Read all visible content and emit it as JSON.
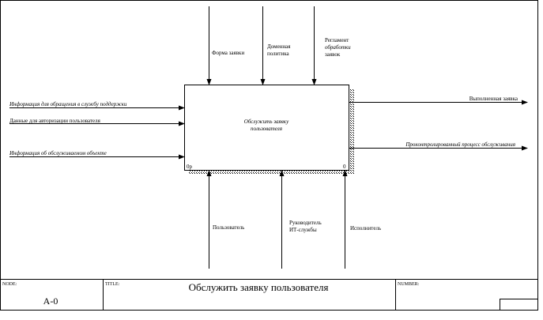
{
  "diagram": {
    "activity": {
      "label_lines": [
        "Обслужить заявку",
        "пользователя"
      ],
      "cost": "0р",
      "number": "0"
    },
    "inputs": [
      {
        "label": "Информация для обращения в службу поддержки"
      },
      {
        "label": "Данные для авторизации пользователя"
      },
      {
        "label": "Информация об обслуживаемом объекте"
      }
    ],
    "controls": [
      {
        "label_lines": [
          "Форма заявки"
        ]
      },
      {
        "label_lines": [
          "Доменная",
          "политика"
        ]
      },
      {
        "label_lines": [
          "Регламент",
          "обработки",
          "заявок"
        ]
      }
    ],
    "outputs": [
      {
        "label": "Выполненная заявка"
      },
      {
        "label": "Проконтролированный процесс обслуживания"
      }
    ],
    "mechanisms": [
      {
        "label_lines": [
          "Пользователь"
        ]
      },
      {
        "label_lines": [
          "Руководитель",
          "ИТ-службы"
        ]
      },
      {
        "label_lines": [
          "Исполнитель"
        ]
      }
    ]
  },
  "frame": {
    "node_label": "NODE:",
    "node_value": "A-0",
    "title_label": "TITLE:",
    "title_value": "Обслужить заявку пользователя",
    "number_label": "NUMBER:"
  }
}
